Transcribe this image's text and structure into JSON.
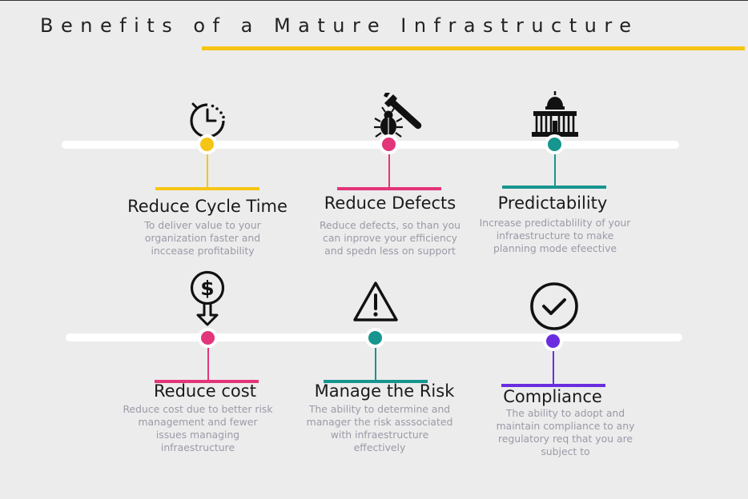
{
  "title": "Benefits of a Mature Infrastructure",
  "colors": {
    "yellow": "#f6c514",
    "pink": "#e33579",
    "teal": "#17958f",
    "purple": "#6a2ee0",
    "background": "#ececec"
  },
  "items": [
    {
      "title": "Reduce Cycle Time",
      "desc": "To deliver value to your organization faster and inccease profitability",
      "icon": "stopwatch-icon",
      "color": "#f6c514"
    },
    {
      "title": "Reduce Defects",
      "desc": "Reduce defects, so than you can inprove your efficiency and spedn less on support",
      "icon": "bug-wrench-icon",
      "color": "#e33579"
    },
    {
      "title": "Predictability",
      "desc": "Increase predictablility of your infraestructure to make planning mode efeective",
      "icon": "capitol-building-icon",
      "color": "#17958f"
    },
    {
      "title": "Reduce cost",
      "desc": "Reduce cost due to better risk management and fewer issues managing infraestructure",
      "icon": "dollar-coin-down-icon",
      "color": "#e33579"
    },
    {
      "title": "Manage the Risk",
      "desc": "The ability to determine and manager the risk asssociated with infraestructure effectively",
      "icon": "warning-triangle-icon",
      "color": "#17958f"
    },
    {
      "title": "Compliance",
      "desc": "The ability to adopt  and maintain compliance to any regulatory req that you are subject to",
      "icon": "check-circle-icon",
      "color": "#6a2ee0"
    }
  ]
}
